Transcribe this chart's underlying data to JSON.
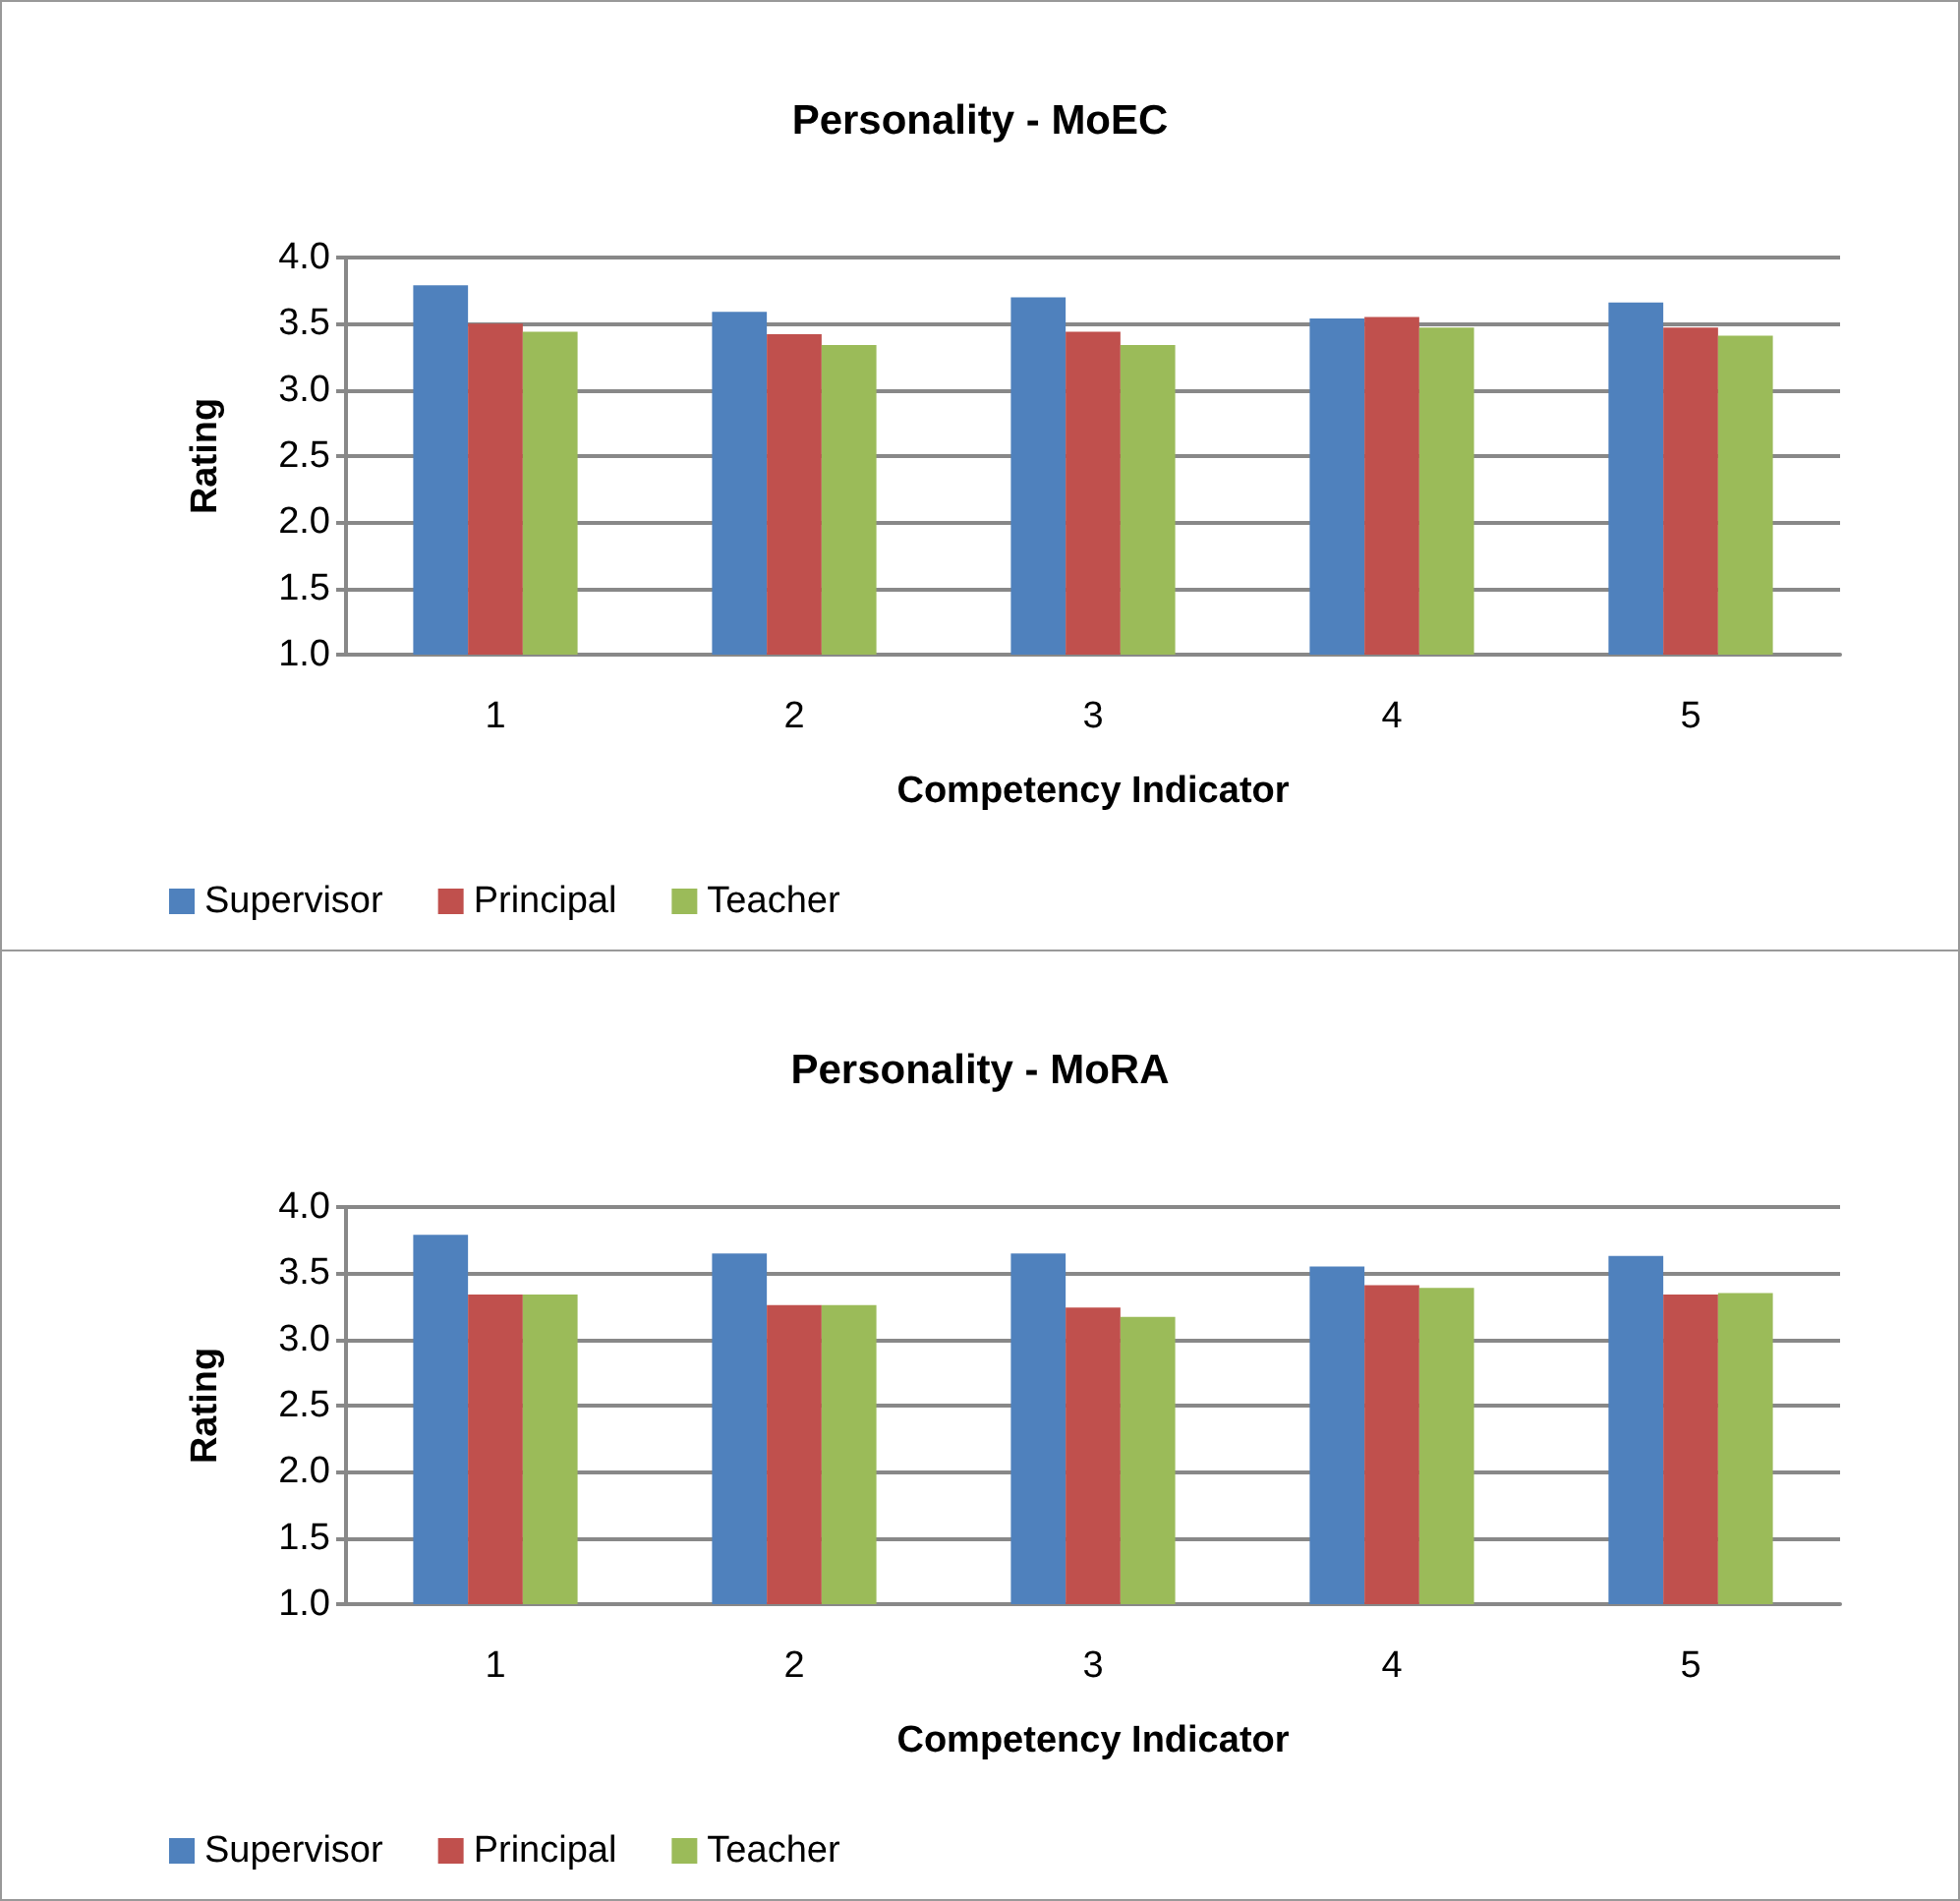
{
  "chart_data": [
    {
      "type": "bar",
      "title": "Personality - MoEC",
      "xlabel": "Competency Indicator",
      "ylabel": "Rating",
      "categories": [
        "1",
        "2",
        "3",
        "4",
        "5"
      ],
      "series": [
        {
          "name": "Supervisor",
          "color": "#4f81bd",
          "values": [
            3.79,
            3.59,
            3.7,
            3.54,
            3.66
          ]
        },
        {
          "name": "Principal",
          "color": "#c0504d",
          "values": [
            3.5,
            3.42,
            3.44,
            3.55,
            3.47
          ]
        },
        {
          "name": "Teacher",
          "color": "#9bbb59",
          "values": [
            3.44,
            3.34,
            3.34,
            3.47,
            3.41
          ]
        }
      ],
      "ylim": [
        1.0,
        4.0
      ],
      "yticks": [
        {
          "value": 1,
          "label": "1.0"
        },
        {
          "value": 1.5,
          "label": "1.5"
        },
        {
          "value": 2,
          "label": "2.0"
        },
        {
          "value": 2.5,
          "label": "2.5"
        },
        {
          "value": 3,
          "label": "3.0"
        },
        {
          "value": 3.5,
          "label": "3.5"
        },
        {
          "value": 4,
          "label": "4.0"
        }
      ],
      "grid": "y",
      "legend": "bottom left"
    },
    {
      "type": "bar",
      "title": "Personality - MoRA",
      "xlabel": "Competency Indicator",
      "ylabel": "Rating",
      "categories": [
        "1",
        "2",
        "3",
        "4",
        "5"
      ],
      "series": [
        {
          "name": "Supervisor",
          "color": "#4f81bd",
          "values": [
            3.79,
            3.65,
            3.65,
            3.55,
            3.63
          ]
        },
        {
          "name": "Principal",
          "color": "#c0504d",
          "values": [
            3.34,
            3.26,
            3.24,
            3.41,
            3.34
          ]
        },
        {
          "name": "Teacher",
          "color": "#9bbb59",
          "values": [
            3.34,
            3.26,
            3.17,
            3.39,
            3.35
          ]
        }
      ],
      "ylim": [
        1.0,
        4.0
      ],
      "yticks": [
        {
          "value": 1,
          "label": "1.0"
        },
        {
          "value": 1.5,
          "label": "1.5"
        },
        {
          "value": 2,
          "label": "2.0"
        },
        {
          "value": 2.5,
          "label": "2.5"
        },
        {
          "value": 3,
          "label": "3.0"
        },
        {
          "value": 3.5,
          "label": "3.5"
        },
        {
          "value": 4,
          "label": "4.0"
        }
      ],
      "grid": "y",
      "legend": "bottom left"
    }
  ]
}
